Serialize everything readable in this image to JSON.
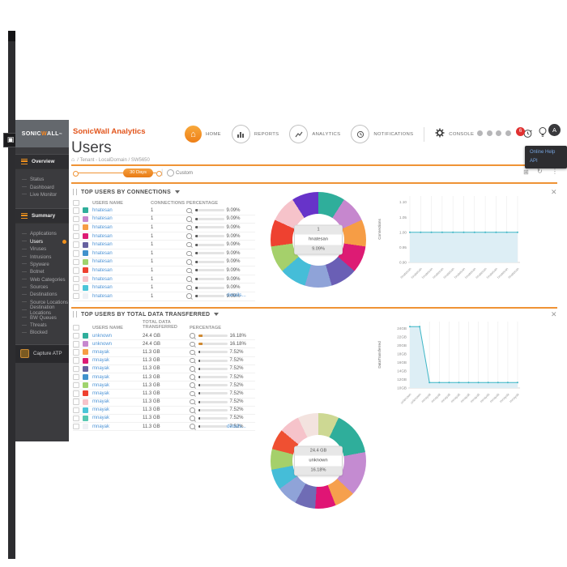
{
  "topbar": {
    "product": "SonicWall Analytics",
    "nav": [
      {
        "label": "HOME",
        "icon": "home-icon",
        "active": true
      },
      {
        "label": "REPORTS",
        "icon": "reports-icon"
      },
      {
        "label": "ANALYTICS",
        "icon": "analytics-icon"
      },
      {
        "label": "NOTIFICATIONS",
        "icon": "notifications-icon"
      },
      {
        "label": "CONSOLE",
        "icon": "console-gear-icon"
      }
    ],
    "alert_count": "6",
    "avatar_initial": "A",
    "help_menu": {
      "items": [
        "Online Help",
        "API"
      ]
    }
  },
  "page": {
    "title": "Users",
    "breadcrumb": "/ Tenant - LocalDomain / SW5650",
    "timebar": {
      "range_label": "30 Days",
      "custom_label": "Custom"
    },
    "accent_color": "#ef9335"
  },
  "sidebar": {
    "logo": {
      "pre": "SONIC",
      "accent": "W",
      "post": "ALL"
    },
    "overview": {
      "label": "Overview",
      "items": [
        "Status",
        "Dashboard",
        "Live Monitor"
      ]
    },
    "summary": {
      "label": "Summary",
      "items": [
        "Applications",
        "Users",
        "Viruses",
        "Intrusions",
        "Spyware",
        "Botnet",
        "Web Categories",
        "Sources",
        "Destinations",
        "Source Locations",
        "Destination Locations",
        "BW Queues",
        "Threats",
        "Blocked"
      ],
      "active": "Users"
    },
    "capture_label": "Capture ATP"
  },
  "panels": [
    {
      "title": "TOP USERS BY CONNECTIONS",
      "columns": [
        "USERS NAME",
        "CONNECTIONS",
        "PERCENTAGE"
      ],
      "details_label": "details...",
      "rows": [
        {
          "color": "#2fae9b",
          "name": "hnatesan",
          "connections": "1",
          "percentage": "9.09%"
        },
        {
          "color": "#c687ce",
          "name": "hnatesan",
          "connections": "1",
          "percentage": "9.09%"
        },
        {
          "color": "#f69d45",
          "name": "hnatesan",
          "connections": "1",
          "percentage": "9.09%"
        },
        {
          "color": "#dd1b74",
          "name": "hnatesan",
          "connections": "1",
          "percentage": "9.09%"
        },
        {
          "color": "#67619f",
          "name": "hnatesan",
          "connections": "1",
          "percentage": "9.09%"
        },
        {
          "color": "#4192cc",
          "name": "hnatesan",
          "connections": "1",
          "percentage": "9.09%"
        },
        {
          "color": "#9fd36d",
          "name": "hnatesan",
          "connections": "1",
          "percentage": "9.09%"
        },
        {
          "color": "#ee4130",
          "name": "hnatesan",
          "connections": "1",
          "percentage": "9.09%"
        },
        {
          "color": "#f6c3ca",
          "name": "hnatesan",
          "connections": "1",
          "percentage": "9.09%"
        },
        {
          "color": "#4cc5d8",
          "name": "hnatesan",
          "connections": "1",
          "percentage": "9.09%"
        },
        {
          "color": "#eef1f5",
          "name": "hnatesan",
          "connections": "1",
          "percentage": "9.09%"
        }
      ]
    },
    {
      "title": "TOP USERS BY TOTAL DATA TRANSFERRED",
      "columns": [
        "USERS NAME",
        "TOTAL DATA TRANSFERRED",
        "PERCENTAGE"
      ],
      "details_label": "details...",
      "rows": [
        {
          "color": "#2fae9b",
          "name": "unknown",
          "data": "24.4 GB",
          "percentage": "16.18%"
        },
        {
          "color": "#c687ce",
          "name": "unknown",
          "data": "24.4 GB",
          "percentage": "16.18%"
        },
        {
          "color": "#f69d45",
          "name": "mnayak",
          "data": "11.3 GB",
          "percentage": "7.52%"
        },
        {
          "color": "#dd1b74",
          "name": "mnayak",
          "data": "11.3 GB",
          "percentage": "7.52%"
        },
        {
          "color": "#67619f",
          "name": "mnayak",
          "data": "11.3 GB",
          "percentage": "7.52%"
        },
        {
          "color": "#4192cc",
          "name": "mnayak",
          "data": "11.3 GB",
          "percentage": "7.52%"
        },
        {
          "color": "#9fd36d",
          "name": "mnayak",
          "data": "11.3 GB",
          "percentage": "7.52%"
        },
        {
          "color": "#ee4130",
          "name": "mnayak",
          "data": "11.3 GB",
          "percentage": "7.52%"
        },
        {
          "color": "#f6c3ca",
          "name": "mnayak",
          "data": "11.3 GB",
          "percentage": "7.52%"
        },
        {
          "color": "#4cc5d8",
          "name": "mnayak",
          "data": "11.3 GB",
          "percentage": "7.52%"
        },
        {
          "color": "#57c8b2",
          "name": "mnayak",
          "data": "11.3 GB",
          "percentage": "7.52%"
        },
        {
          "color": "#eef1f5",
          "name": "mnayak",
          "data": "11.3 GB",
          "percentage": "7.52%"
        }
      ]
    }
  ],
  "chart_data": [
    {
      "id": "top-users-by-connections-donut",
      "type": "pie",
      "labels": [
        "hnatesan",
        "hnatesan",
        "hnatesan",
        "hnatesan",
        "hnatesan",
        "hnatesan",
        "hnatesan",
        "hnatesan",
        "hnatesan",
        "hnatesan",
        "hnatesan"
      ],
      "values": [
        9.09,
        9.09,
        9.09,
        9.09,
        9.09,
        9.09,
        9.09,
        9.09,
        9.09,
        9.09,
        9.09
      ],
      "colors": [
        "#2fae9b",
        "#c687ce",
        "#f69d45",
        "#dd1b74",
        "#6a5fb5",
        "#8fa3d8",
        "#45bdd8",
        "#a5d06b",
        "#ee4130",
        "#f6c3ca",
        "#6733c9"
      ],
      "center": {
        "value": "1",
        "name": "hnatesan",
        "pct": "9.09%"
      }
    },
    {
      "id": "top-users-by-connections-trend",
      "type": "area",
      "title": "",
      "xlabel": "",
      "ylabel": "Connections",
      "x": [
        "hnatesan",
        "hnatesan",
        "hnatesan",
        "hnatesan",
        "hnatesan",
        "hnatesan",
        "hnatesan",
        "hnatesan",
        "hnatesan",
        "hnatesan",
        "hnatesan"
      ],
      "values": [
        1.0,
        1.0,
        1.0,
        1.0,
        1.0,
        1.0,
        1.0,
        1.0,
        1.0,
        1.0,
        1.0
      ],
      "ylim": [
        0.9,
        1.12
      ],
      "ytick_values": [
        1.1,
        1.05,
        1.0,
        0.95,
        0.9
      ],
      "ytick_labels": [
        "1.10",
        "1.05",
        "1.00",
        "0.95",
        "0.90"
      ],
      "grid": "vertical",
      "line_color": "#3db6c6",
      "fill_color": "#ddeef5"
    },
    {
      "id": "top-users-by-data-donut",
      "type": "pie",
      "labels": [
        "mnayak",
        "unknown",
        "unknown",
        "mnayak",
        "mnayak",
        "mnayak",
        "mnayak",
        "mnayak",
        "mnayak",
        "mnayak",
        "mnayak",
        "mnayak"
      ],
      "values": [
        7.52,
        16.18,
        16.18,
        7.52,
        7.52,
        7.52,
        7.52,
        7.52,
        7.52,
        7.52,
        7.52,
        7.52
      ],
      "colors": [
        "#cdd893",
        "#2fae9b",
        "#c48bd1",
        "#f6a04d",
        "#e01575",
        "#6f6cb5",
        "#8fa3d8",
        "#45bdd8",
        "#a5d06b",
        "#ef5032",
        "#f6c3ca",
        "#f3e3df"
      ],
      "center": {
        "value": "24.4 GB",
        "name": "unknown",
        "pct": "16.18%"
      }
    },
    {
      "id": "top-users-by-data-trend",
      "type": "area",
      "title": "",
      "xlabel": "",
      "ylabel": "DataTransferred",
      "x": [
        "unknown",
        "unknown",
        "mnayak",
        "mnayak",
        "mnayak",
        "mnayak",
        "mnayak",
        "mnayak",
        "mnayak",
        "mnayak",
        "mnayak",
        "mnayak"
      ],
      "values": [
        24.4,
        24.4,
        11.3,
        11.3,
        11.3,
        11.3,
        11.3,
        11.3,
        11.3,
        11.3,
        11.3,
        11.3
      ],
      "ylim": [
        10,
        25.6
      ],
      "ytick_values": [
        24,
        22,
        20,
        18,
        16,
        14,
        12,
        10
      ],
      "ytick_labels": [
        "24GB",
        "22GB",
        "20GB",
        "18GB",
        "16GB",
        "14GB",
        "12GB",
        "10GB"
      ],
      "grid": "vertical",
      "line_color": "#3db6c6",
      "fill_color": "#ddeef5"
    }
  ]
}
